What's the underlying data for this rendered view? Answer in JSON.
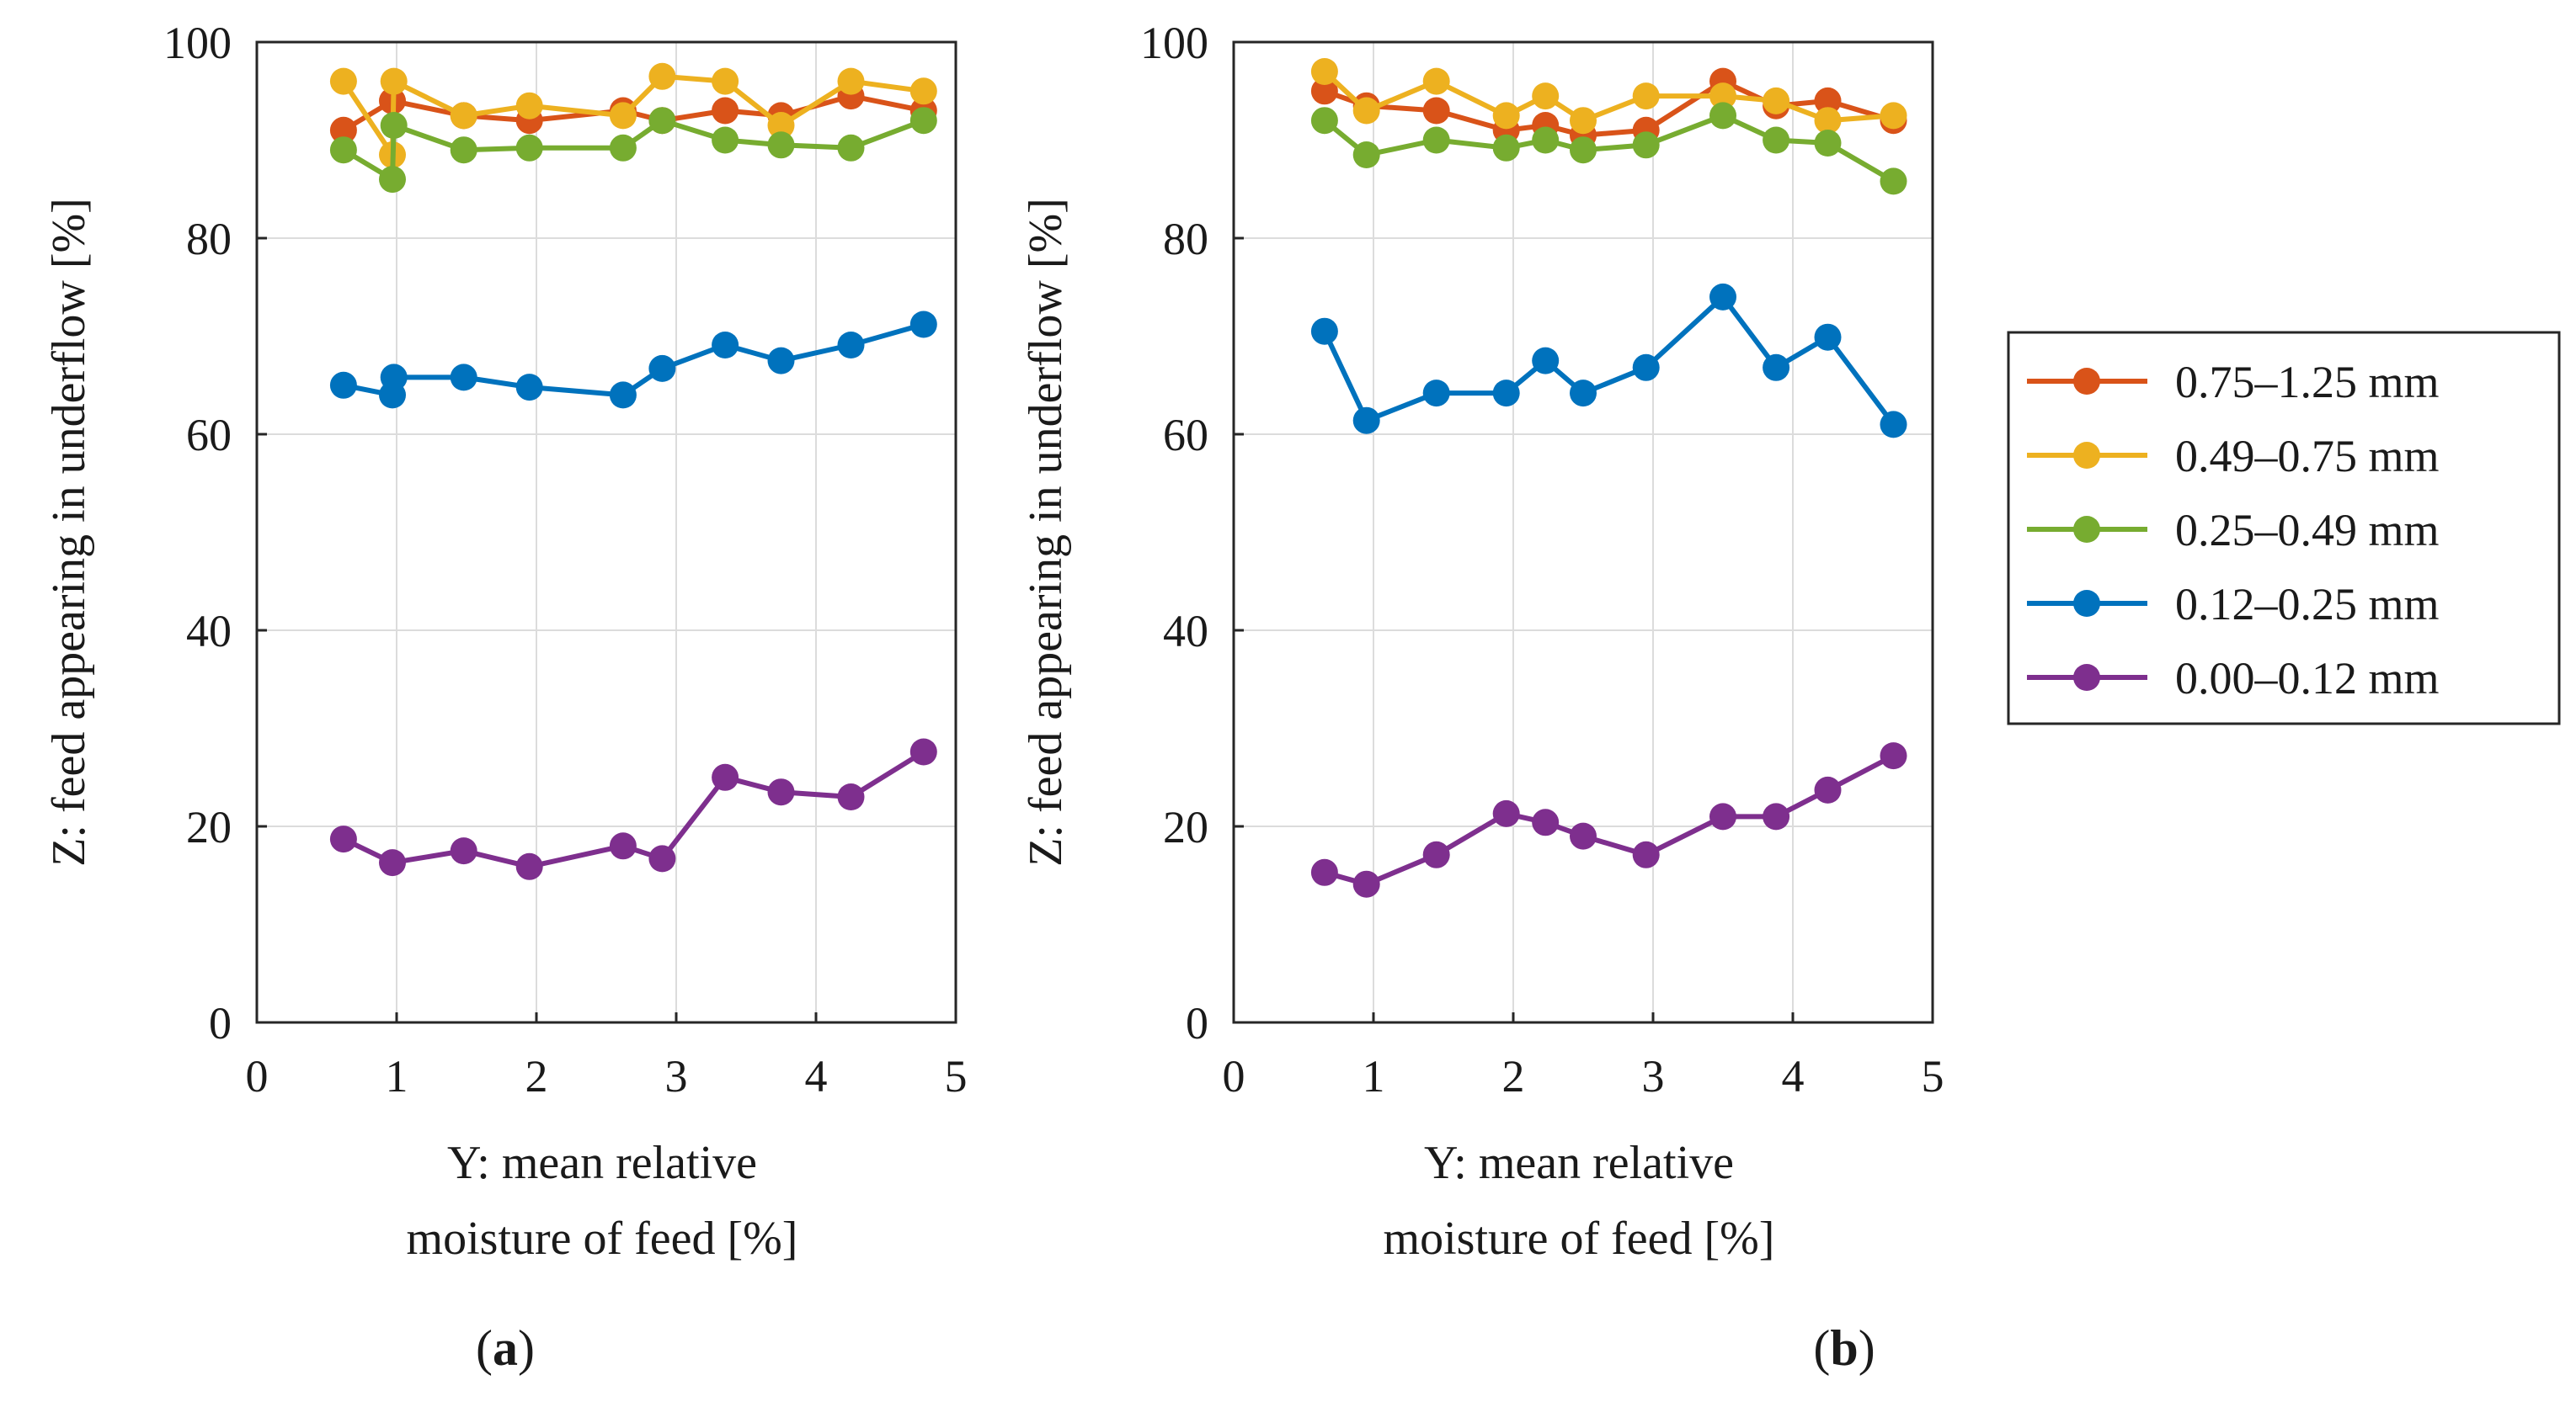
{
  "figure": {
    "legend": {
      "entries": [
        {
          "label": "0.75–1.25 mm",
          "color": "#D95319"
        },
        {
          "label": "0.49–0.75 mm",
          "color": "#EDB120"
        },
        {
          "label": "0.25–0.49 mm",
          "color": "#77AC30"
        },
        {
          "label": "0.12–0.25 mm",
          "color": "#0072BD"
        },
        {
          "label": "0.00–0.12 mm",
          "color": "#7E2F8E"
        }
      ]
    }
  },
  "chart_data": [
    {
      "type": "line",
      "panel_label": "(a)",
      "panel_letter": "a",
      "xlabel": [
        "Y: mean relative",
        "moisture of feed [%]"
      ],
      "ylabel": "Z: feed appearing in underflow [%]",
      "xlim": [
        0,
        5
      ],
      "ylim": [
        0,
        100
      ],
      "xticks": [
        0,
        1,
        2,
        3,
        4,
        5
      ],
      "yticks": [
        0,
        20,
        40,
        60,
        80,
        100
      ],
      "grid": true,
      "series": [
        {
          "name": "0.75–1.25 mm",
          "color": "#D95319",
          "x": [
            0.62,
            0.97,
            1.48,
            1.95,
            2.62,
            2.9,
            3.35,
            3.75,
            4.25,
            4.77
          ],
          "y": [
            91,
            94,
            92.5,
            92,
            93,
            92,
            93,
            92.5,
            94.5,
            93
          ]
        },
        {
          "name": "0.49–0.75 mm",
          "color": "#EDB120",
          "x": [
            0.62,
            0.97,
            0.98,
            1.48,
            1.95,
            2.62,
            2.9,
            3.35,
            3.75,
            4.25,
            4.77
          ],
          "y": [
            96,
            88.5,
            96,
            92.5,
            93.5,
            92.5,
            96.5,
            96,
            91.5,
            96,
            95
          ]
        },
        {
          "name": "0.25–0.49 mm",
          "color": "#77AC30",
          "x": [
            0.62,
            0.97,
            0.98,
            1.48,
            1.95,
            2.62,
            2.9,
            3.35,
            3.75,
            4.25,
            4.77
          ],
          "y": [
            89,
            86,
            91.5,
            89,
            89.2,
            89.2,
            92,
            90,
            89.5,
            89.2,
            92
          ]
        },
        {
          "name": "0.12–0.25 mm",
          "color": "#0072BD",
          "x": [
            0.62,
            0.97,
            0.98,
            1.48,
            1.95,
            2.62,
            2.9,
            3.35,
            3.75,
            4.25,
            4.77
          ],
          "y": [
            65,
            64,
            65.8,
            65.8,
            64.8,
            64,
            66.7,
            69.1,
            67.5,
            69.1,
            71.2
          ]
        },
        {
          "name": "0.00–0.12 mm",
          "color": "#7E2F8E",
          "x": [
            0.62,
            0.97,
            1.48,
            1.95,
            2.62,
            2.9,
            3.35,
            3.75,
            4.25,
            4.77
          ],
          "y": [
            18.7,
            16.3,
            17.5,
            15.9,
            18,
            16.7,
            25,
            23.5,
            23,
            27.6
          ]
        }
      ]
    },
    {
      "type": "line",
      "panel_label": "(b)",
      "panel_letter": "b",
      "xlabel": [
        "Y: mean relative",
        "moisture of feed [%]"
      ],
      "ylabel": "Z: feed appearing in underflow [%]",
      "xlim": [
        0,
        5
      ],
      "ylim": [
        0,
        100
      ],
      "xticks": [
        0,
        1,
        2,
        3,
        4,
        5
      ],
      "yticks": [
        0,
        20,
        40,
        60,
        80,
        100
      ],
      "grid": true,
      "series": [
        {
          "name": "0.75–1.25 mm",
          "color": "#D95319",
          "x": [
            0.65,
            0.95,
            1.45,
            1.95,
            2.23,
            2.5,
            2.95,
            3.5,
            3.88,
            4.25,
            4.72
          ],
          "y": [
            95,
            93.5,
            93,
            91,
            91.5,
            90.5,
            91,
            96,
            93.5,
            94,
            92
          ]
        },
        {
          "name": "0.49–0.75 mm",
          "color": "#EDB120",
          "x": [
            0.65,
            0.95,
            1.45,
            1.95,
            2.23,
            2.5,
            2.95,
            3.5,
            3.88,
            4.25,
            4.72
          ],
          "y": [
            97,
            93,
            96,
            92.5,
            94.5,
            92,
            94.5,
            94.5,
            94,
            92,
            92.5
          ]
        },
        {
          "name": "0.25–0.49 mm",
          "color": "#77AC30",
          "x": [
            0.65,
            0.95,
            1.45,
            1.95,
            2.23,
            2.5,
            2.95,
            3.5,
            3.88,
            4.25,
            4.72
          ],
          "y": [
            92,
            88.5,
            90,
            89.2,
            90,
            89,
            89.5,
            92.5,
            90,
            89.7,
            85.8
          ]
        },
        {
          "name": "0.12–0.25 mm",
          "color": "#0072BD",
          "x": [
            0.65,
            0.95,
            1.45,
            1.95,
            2.23,
            2.5,
            2.95,
            3.5,
            3.88,
            4.25,
            4.72
          ],
          "y": [
            70.5,
            61.4,
            64.2,
            64.2,
            67.5,
            64.2,
            66.8,
            74,
            66.8,
            69.9,
            61
          ]
        },
        {
          "name": "0.00–0.12 mm",
          "color": "#7E2F8E",
          "x": [
            0.65,
            0.95,
            1.45,
            1.95,
            2.23,
            2.5,
            2.95,
            3.5,
            3.88,
            4.25,
            4.72
          ],
          "y": [
            15.3,
            14.1,
            17.1,
            21.3,
            20.4,
            19,
            17.1,
            21,
            21,
            23.7,
            27.2
          ]
        }
      ]
    }
  ]
}
